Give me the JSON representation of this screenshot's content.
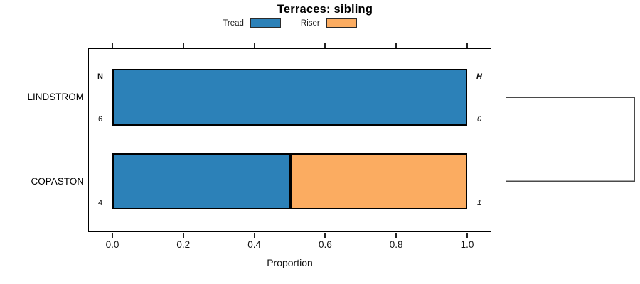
{
  "chart_data": {
    "type": "bar",
    "orientation": "horizontal",
    "stacked": true,
    "title": "Terraces: sibling",
    "xlabel": "Proportion",
    "xlim": [
      0,
      1
    ],
    "xticks": [
      {
        "value": 0.0,
        "label": "0.0"
      },
      {
        "value": 0.2,
        "label": "0.2"
      },
      {
        "value": 0.4,
        "label": "0.4"
      },
      {
        "value": 0.6,
        "label": "0.6"
      },
      {
        "value": 0.8,
        "label": "0.8"
      },
      {
        "value": 1.0,
        "label": "1.0"
      }
    ],
    "categories": [
      "LINDSTROM",
      "COPASTON"
    ],
    "series": [
      {
        "name": "Tread",
        "color": "#2c81b8",
        "values": [
          1.0,
          0.5
        ]
      },
      {
        "name": "Riser",
        "color": "#fbac61",
        "values": [
          0.0,
          0.5
        ]
      }
    ],
    "legend": {
      "position": "top",
      "entries": [
        {
          "label": "Tread",
          "color": "#2c81b8"
        },
        {
          "label": "Riser",
          "color": "#fbac61"
        }
      ]
    },
    "annotations": {
      "left_header": "N",
      "right_header": "H",
      "left_values": [
        "6",
        "4"
      ],
      "right_values": [
        "0",
        "1"
      ]
    },
    "linkage_bracket": {
      "connects": [
        "LINDSTROM",
        "COPASTON"
      ],
      "color": "#4a4a4a"
    },
    "colors": {
      "bar_border": "#000000",
      "axis": "#000000"
    }
  }
}
